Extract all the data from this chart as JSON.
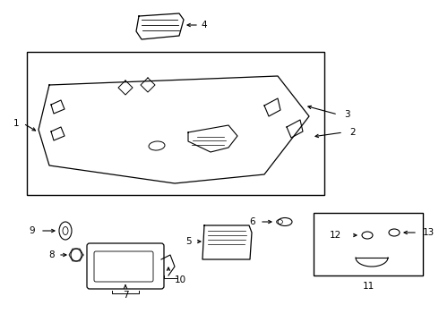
{
  "bg_color": "#ffffff",
  "line_color": "#000000",
  "fig_width": 4.9,
  "fig_height": 3.6,
  "dpi": 100,
  "lw": 0.9
}
